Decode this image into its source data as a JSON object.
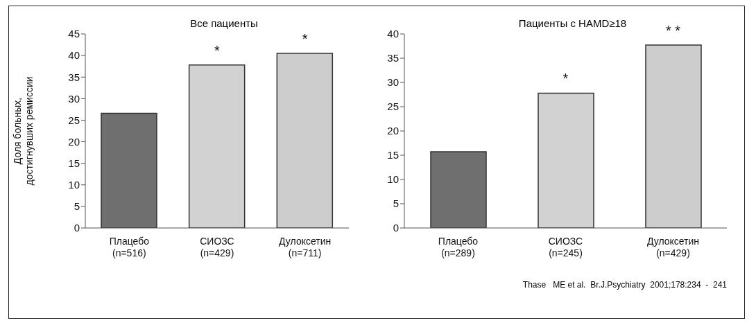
{
  "chart_data": [
    {
      "type": "bar",
      "title": "Все пациенты",
      "ylabel": "Доля больных,\nдостигнувших ремиссии",
      "categories": [
        "Плацебо\n(n=516)",
        "СИОЗС\n(n=429)",
        "Дулоксетин\n(n=711)"
      ],
      "values": [
        26.6,
        37.8,
        40.5
      ],
      "colors": [
        "#6f6f6f",
        "#d2d2d2",
        "#cdcdcd"
      ],
      "ylim": [
        0,
        45
      ],
      "yticks": [
        0,
        5,
        10,
        15,
        20,
        25,
        30,
        35,
        40,
        45
      ],
      "grid": false,
      "legend": false,
      "annotations": [
        {
          "text": "*",
          "x": "СИОЗС\n(n=429)",
          "y": 37.8
        },
        {
          "text": "*",
          "x": "Дулоксетин\n(n=711)",
          "y": 40.5
        }
      ]
    },
    {
      "type": "bar",
      "title": "Пациенты  с  HAMD≥18",
      "categories": [
        "Плацебо\n(n=289)",
        "СИОЗС\n(n=245)",
        "Дулоксетин\n(n=429)"
      ],
      "values": [
        15.7,
        27.8,
        37.7
      ],
      "colors": [
        "#6f6f6f",
        "#d2d2d2",
        "#cdcdcd"
      ],
      "ylim": [
        0,
        40
      ],
      "yticks": [
        0,
        5,
        10,
        15,
        20,
        25,
        30,
        35,
        40
      ],
      "grid": false,
      "legend": false,
      "annotations": [
        {
          "text": "*",
          "x": "СИОЗС\n(n=245)",
          "y": 27.8
        },
        {
          "text": "* *",
          "x": "Дулоксетин\n(n=429)",
          "y": 37.7
        },
        "Thase   ME et al.  Br.J.Psychiatry  2001;178:234  -  241"
      ]
    }
  ]
}
